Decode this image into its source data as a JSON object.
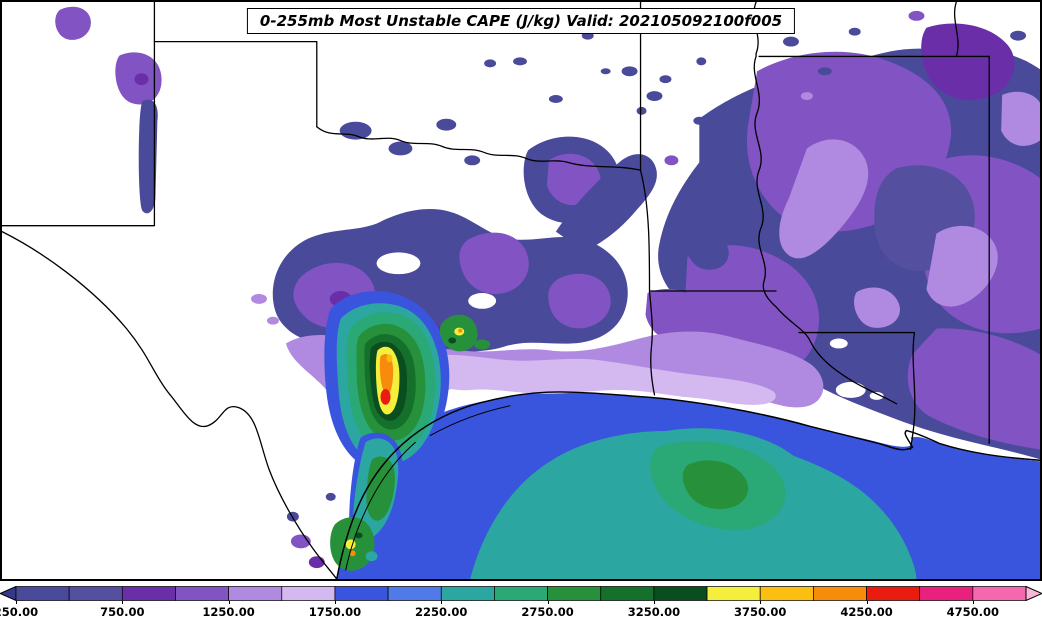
{
  "title": "0-255mb Most Unstable CAPE (J/kg) Valid: 202105092100f005",
  "colorbar": {
    "range": [
      250,
      5000
    ],
    "arrow_left_color": "#38388a",
    "arrow_right_color": "#f9b8d6",
    "segments": [
      {
        "from": 250,
        "to": 500,
        "color": "#4a4a9a"
      },
      {
        "from": 500,
        "to": 750,
        "color": "#54509f"
      },
      {
        "from": 750,
        "to": 1000,
        "color": "#6a2fa8"
      },
      {
        "from": 1000,
        "to": 1250,
        "color": "#8253c2"
      },
      {
        "from": 1250,
        "to": 1500,
        "color": "#b08ae0"
      },
      {
        "from": 1500,
        "to": 1750,
        "color": "#d4b8f0"
      },
      {
        "from": 1750,
        "to": 2000,
        "color": "#3a55dd"
      },
      {
        "from": 2000,
        "to": 2250,
        "color": "#4f7ae8"
      },
      {
        "from": 2250,
        "to": 2500,
        "color": "#2ca6a0"
      },
      {
        "from": 2500,
        "to": 2750,
        "color": "#2aa876"
      },
      {
        "from": 2750,
        "to": 3000,
        "color": "#26913a"
      },
      {
        "from": 3000,
        "to": 3250,
        "color": "#14702a"
      },
      {
        "from": 3250,
        "to": 3500,
        "color": "#0a4d1e"
      },
      {
        "from": 3500,
        "to": 3750,
        "color": "#f4ef3d"
      },
      {
        "from": 3750,
        "to": 4000,
        "color": "#fbbf12"
      },
      {
        "from": 4000,
        "to": 4250,
        "color": "#f78c0c"
      },
      {
        "from": 4250,
        "to": 4500,
        "color": "#ea1c10"
      },
      {
        "from": 4500,
        "to": 4750,
        "color": "#e8217e"
      },
      {
        "from": 4750,
        "to": 5000,
        "color": "#f468b0"
      }
    ],
    "tick_values": [
      250,
      750,
      1250,
      1750,
      2250,
      2750,
      3250,
      3750,
      4250,
      4750
    ],
    "ticks": [
      "250.00",
      "750.00",
      "1250.00",
      "1750.00",
      "2250.00",
      "2750.00",
      "3250.00",
      "3750.00",
      "4250.00",
      "4750.00"
    ]
  },
  "chart_data": {
    "type": "heatmap",
    "title": "0-255mb Most Unstable CAPE (J/kg) Valid: 202105092100f005",
    "variable": "0-255mb Most Unstable CAPE",
    "units": "J/kg",
    "valid_time": "202105092100f005",
    "legend_position": "bottom",
    "colorbar_extends": "both",
    "contour_levels": [
      250,
      500,
      750,
      1000,
      1250,
      1500,
      1750,
      2000,
      2250,
      2500,
      2750,
      3000,
      3250,
      3500,
      3750,
      4000,
      4250,
      4500,
      4750,
      5000
    ],
    "tick_labels": [
      "250.00",
      "750.00",
      "1250.00",
      "1750.00",
      "2250.00",
      "2750.00",
      "3250.00",
      "3750.00",
      "4250.00",
      "4750.00"
    ],
    "colors": [
      "#4a4a9a",
      "#54509f",
      "#6a2fa8",
      "#8253c2",
      "#b08ae0",
      "#d4b8f0",
      "#3a55dd",
      "#4f7ae8",
      "#2ca6a0",
      "#2aa876",
      "#26913a",
      "#14702a",
      "#0a4d1e",
      "#f4ef3d",
      "#fbbf12",
      "#f78c0c",
      "#ea1c10",
      "#e8217e",
      "#f468b0"
    ],
    "features": [
      {
        "region": "Central Texas maximum (yellow/orange/red core)",
        "approx_value_range": "3500-4500+"
      },
      {
        "region": "Western Gulf of Mexico",
        "approx_value_range": "1750-3250"
      },
      {
        "region": "Texas/Louisiana coastal plain (lavender band)",
        "approx_value_range": "1250-1750"
      },
      {
        "region": "Arklatex / Mississippi valley (purple field)",
        "approx_value_range": "250-1250"
      },
      {
        "region": "West Texas / Mexico interior",
        "approx_value_range": "below 250 (white)"
      }
    ]
  }
}
